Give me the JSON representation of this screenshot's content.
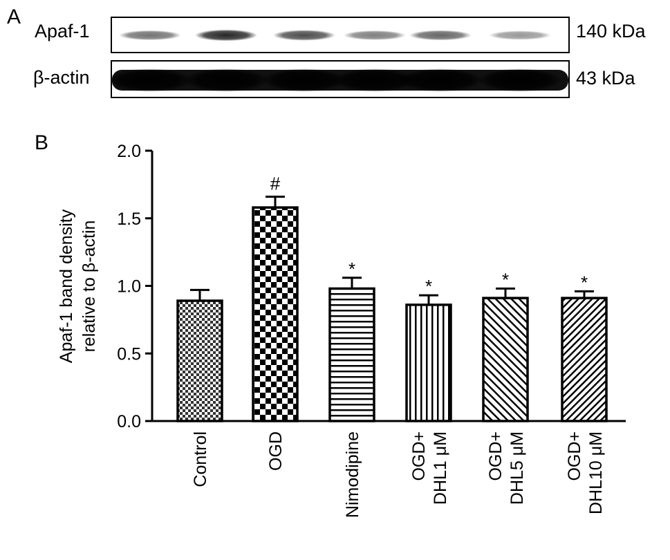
{
  "panel_a": {
    "letter": "A",
    "blots": [
      {
        "label": "Apaf-1",
        "mw": "140 kDa",
        "band_intensity": [
          0.55,
          0.85,
          0.7,
          0.5,
          0.6,
          0.4
        ]
      },
      {
        "label": "β-actin",
        "mw": "43 kDa",
        "band_intensity": [
          1,
          1,
          1,
          1,
          1,
          1
        ]
      }
    ]
  },
  "panel_b": {
    "letter": "B"
  },
  "chart_data": {
    "type": "bar",
    "categories": [
      [
        "Control"
      ],
      [
        "OGD"
      ],
      [
        "Nimodipine"
      ],
      [
        "OGD+",
        "DHL1 μM"
      ],
      [
        "OGD+",
        "DHL5 μM"
      ],
      [
        "OGD+",
        "DHL10 μM"
      ]
    ],
    "values": [
      0.89,
      1.58,
      0.98,
      0.86,
      0.91,
      0.91
    ],
    "errors": [
      0.08,
      0.08,
      0.08,
      0.07,
      0.07,
      0.05
    ],
    "annotations": [
      "",
      "#",
      "*",
      "*",
      "*",
      "*"
    ],
    "patterns": [
      "fine-checker",
      "checker",
      "horizontal-lines",
      "vertical-lines",
      "diagonal-lines",
      "diagonal-lines-dense"
    ],
    "ylabel": [
      "Apaf-1 band density",
      "relative to β-actin"
    ],
    "xlabel": "",
    "ylim": [
      0.0,
      2.0
    ],
    "yticks": [
      "0.0",
      "0.5",
      "1.0",
      "1.5",
      "2.0"
    ],
    "grid": false,
    "legend": "none"
  }
}
